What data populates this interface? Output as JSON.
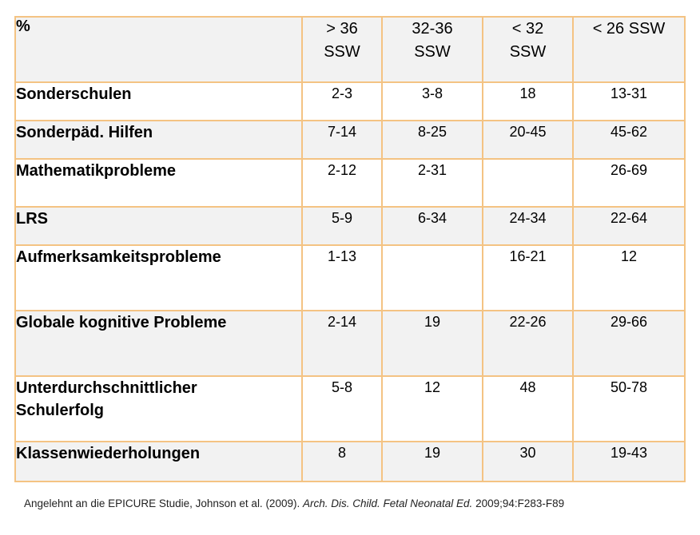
{
  "table": {
    "corner_label": "%",
    "columns": [
      {
        "line1": "> 36",
        "line2": "SSW"
      },
      {
        "line1": "32-36",
        "line2": "SSW"
      },
      {
        "line1": "< 32",
        "line2": "SSW"
      },
      {
        "line1": "< 26 SSW",
        "line2": ""
      }
    ],
    "rows": [
      {
        "label_line1": "Sonderschulen",
        "label_line2": "",
        "values": [
          "2-3",
          "3-8",
          "18",
          "13-31"
        ]
      },
      {
        "label_line1": "Sonderpäd. Hilfen",
        "label_line2": "",
        "values": [
          "7-14",
          "8-25",
          "20-45",
          "45-62"
        ]
      },
      {
        "label_line1": "Mathematikprobleme",
        "label_line2": "",
        "values": [
          "2-12",
          "2-31",
          "",
          "26-69"
        ]
      },
      {
        "label_line1": "LRS",
        "label_line2": "",
        "values": [
          "5-9",
          "6-34",
          "24-34",
          "22-64"
        ]
      },
      {
        "label_line1": "Aufmerksamkeitsprobleme",
        "label_line2": "",
        "values": [
          "1-13",
          "",
          "16-21",
          "12"
        ]
      },
      {
        "label_line1": "Globale kognitive Probleme",
        "label_line2": "",
        "values": [
          "2-14",
          "19",
          "22-26",
          "29-66"
        ]
      },
      {
        "label_line1": "Unterdurchschnittlicher",
        "label_line2": "Schulerfolg",
        "values": [
          "5-8",
          "12",
          "48",
          "50-78"
        ]
      },
      {
        "label_line1": "Klassenwiederholungen",
        "label_line2": "",
        "values": [
          "8",
          "19",
          "30",
          "19-43"
        ]
      }
    ]
  },
  "footnote": {
    "prefix": "Angelehnt an die EPICURE Studie,  Johnson et al. (2009). ",
    "journal": "Arch. Dis. Child. Fetal Neonatal Ed.",
    "suffix": " 2009;94:F283-F89"
  },
  "colors": {
    "border": "#F4C383",
    "shaded_row": "#F2F2F2"
  }
}
